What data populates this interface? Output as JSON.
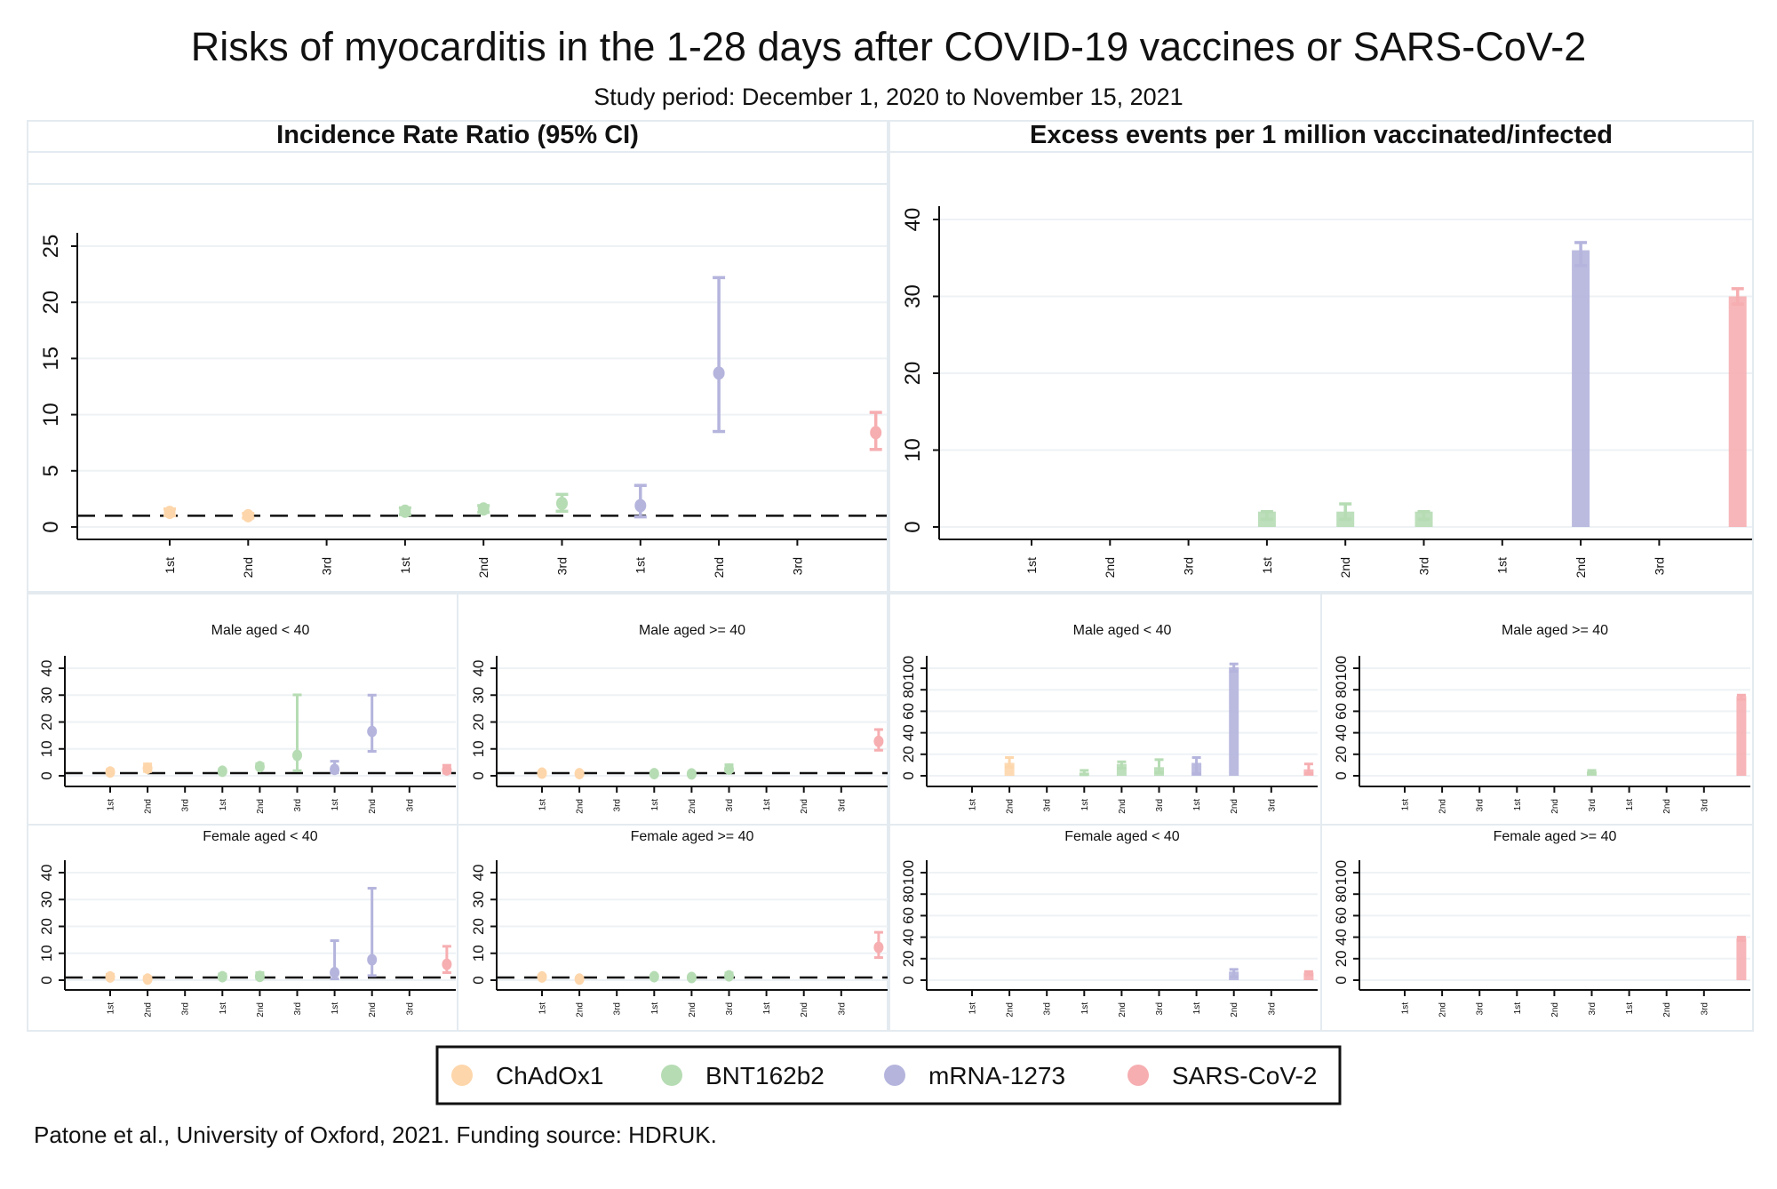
{
  "title": "Risks of myocarditis in the 1-28 days after COVID-19 vaccines or SARS-CoV-2",
  "subtitle": "Study period: December 1, 2020 to November 15, 2021",
  "panels": {
    "irr_header": "Incidence Rate Ratio (95% CI)",
    "excess_header": "Excess events per 1 million vaccinated/infected"
  },
  "legend": [
    {
      "label": "ChAdOx1",
      "color": "#fdd6ab"
    },
    {
      "label": "BNT162b2",
      "color": "#b6dcb4"
    },
    {
      "label": "mRNA-1273",
      "color": "#b4b4dd"
    },
    {
      "label": "SARS-CoV-2",
      "color": "#f6aeb1"
    }
  ],
  "footer": "Patone et al., University of Oxford, 2021. Funding source: HDRUK.",
  "chart_data": [
    {
      "type": "scatter",
      "title": "",
      "measure": "Incidence Rate Ratio (95% CI)",
      "ylim": [
        0,
        26
      ],
      "yticks": [
        0,
        5,
        10,
        15,
        20,
        25
      ],
      "reference_line": 1,
      "grid": true,
      "xticks": [
        "1st",
        "2nd",
        "3rd",
        "1st",
        "2nd",
        "3rd",
        "1st",
        "2nd",
        "3rd"
      ],
      "series": [
        {
          "name": "ChAdOx1",
          "points": [
            {
              "dose": "1st",
              "value": 1.3,
              "ci": [
                1.0,
                1.6
              ]
            },
            {
              "dose": "2nd",
              "value": 1.0,
              "ci": [
                0.8,
                1.2
              ]
            }
          ]
        },
        {
          "name": "BNT162b2",
          "points": [
            {
              "dose": "1st",
              "value": 1.4,
              "ci": [
                1.1,
                1.7
              ]
            },
            {
              "dose": "2nd",
              "value": 1.6,
              "ci": [
                1.3,
                1.9
              ]
            },
            {
              "dose": "3rd",
              "value": 2.1,
              "ci": [
                1.4,
                2.9
              ]
            }
          ]
        },
        {
          "name": "mRNA-1273",
          "points": [
            {
              "dose": "1st",
              "value": 1.9,
              "ci": [
                0.9,
                3.7
              ]
            },
            {
              "dose": "2nd",
              "value": 13.7,
              "ci": [
                8.5,
                22.2
              ]
            }
          ]
        },
        {
          "name": "SARS-CoV-2",
          "points": [
            {
              "dose": "",
              "value": 8.4,
              "ci": [
                6.9,
                10.2
              ]
            }
          ]
        }
      ]
    },
    {
      "type": "bar",
      "title": "",
      "measure": "Excess events per 1 million vaccinated/infected",
      "ylim": [
        0,
        41
      ],
      "yticks": [
        0,
        10,
        20,
        30,
        40
      ],
      "grid": true,
      "xticks": [
        "1st",
        "2nd",
        "3rd",
        "1st",
        "2nd",
        "3rd",
        "1st",
        "2nd",
        "3rd"
      ],
      "series": [
        {
          "name": "ChAdOx1",
          "points": []
        },
        {
          "name": "BNT162b2",
          "points": [
            {
              "dose": "1st",
              "value": 2,
              "ci": [
                1,
                2
              ]
            },
            {
              "dose": "2nd",
              "value": 2,
              "ci": [
                1,
                3
              ]
            },
            {
              "dose": "3rd",
              "value": 2,
              "ci": [
                1,
                2
              ]
            }
          ]
        },
        {
          "name": "mRNA-1273",
          "points": [
            {
              "dose": "2nd",
              "value": 36,
              "ci": [
                34,
                37
              ]
            }
          ]
        },
        {
          "name": "SARS-CoV-2",
          "points": [
            {
              "dose": "",
              "value": 30,
              "ci": [
                29,
                31
              ]
            }
          ]
        }
      ]
    },
    {
      "type": "scatter",
      "title": "Male aged < 40",
      "measure": "Incidence Rate Ratio (95% CI)",
      "ylim": [
        0,
        44
      ],
      "yticks": [
        0,
        10,
        20,
        30,
        40
      ],
      "reference_line": 1,
      "grid": true,
      "xticks": [
        "1st",
        "2nd",
        "3rd",
        "1st",
        "2nd",
        "3rd",
        "1st",
        "2nd",
        "3rd"
      ],
      "series": [
        {
          "name": "ChAdOx1",
          "points": [
            {
              "dose": "1st",
              "value": 1.4,
              "ci": [
                0.8,
                2.3
              ]
            },
            {
              "dose": "2nd",
              "value": 2.8,
              "ci": [
                1.6,
                4.4
              ]
            }
          ]
        },
        {
          "name": "BNT162b2",
          "points": [
            {
              "dose": "1st",
              "value": 1.7,
              "ci": [
                1.2,
                2.3
              ]
            },
            {
              "dose": "2nd",
              "value": 3.4,
              "ci": [
                2.7,
                4.5
              ]
            },
            {
              "dose": "3rd",
              "value": 7.6,
              "ci": [
                1.9,
                30.1
              ]
            }
          ]
        },
        {
          "name": "mRNA-1273",
          "points": [
            {
              "dose": "1st",
              "value": 2.4,
              "ci": [
                1.1,
                5.4
              ]
            },
            {
              "dose": "2nd",
              "value": 16.5,
              "ci": [
                9.1,
                30.0
              ]
            }
          ]
        },
        {
          "name": "SARS-CoV-2",
          "points": [
            {
              "dose": "",
              "value": 2.2,
              "ci": [
                1.0,
                3.9
              ]
            }
          ]
        }
      ]
    },
    {
      "type": "scatter",
      "title": "Male aged >= 40",
      "measure": "Incidence Rate Ratio (95% CI)",
      "ylim": [
        0,
        44
      ],
      "yticks": [
        0,
        10,
        20,
        30,
        40
      ],
      "reference_line": 1,
      "grid": true,
      "xticks": [
        "1st",
        "2nd",
        "3rd",
        "1st",
        "2nd",
        "3rd",
        "1st",
        "2nd",
        "3rd"
      ],
      "series": [
        {
          "name": "ChAdOx1",
          "points": [
            {
              "dose": "1st",
              "value": 1.0,
              "ci": [
                0.7,
                1.6
              ]
            },
            {
              "dose": "2nd",
              "value": 0.8,
              "ci": [
                0.5,
                1.2
              ]
            }
          ]
        },
        {
          "name": "BNT162b2",
          "points": [
            {
              "dose": "1st",
              "value": 0.8,
              "ci": [
                0.5,
                1.3
              ]
            },
            {
              "dose": "2nd",
              "value": 0.7,
              "ci": [
                0.4,
                1.2
              ]
            },
            {
              "dose": "3rd",
              "value": 2.5,
              "ci": [
                1.6,
                4.1
              ]
            }
          ]
        },
        {
          "name": "mRNA-1273",
          "points": []
        },
        {
          "name": "SARS-CoV-2",
          "points": [
            {
              "dose": "",
              "value": 12.8,
              "ci": [
                9.5,
                17.2
              ]
            }
          ]
        }
      ]
    },
    {
      "type": "scatter",
      "title": "Female aged < 40",
      "measure": "Incidence Rate Ratio (95% CI)",
      "ylim": [
        0,
        44
      ],
      "yticks": [
        0,
        10,
        20,
        30,
        40
      ],
      "reference_line": 1,
      "grid": true,
      "xticks": [
        "1st",
        "2nd",
        "3rd",
        "1st",
        "2nd",
        "3rd",
        "1st",
        "2nd",
        "3rd"
      ],
      "series": [
        {
          "name": "ChAdOx1",
          "points": [
            {
              "dose": "1st",
              "value": 1.2,
              "ci": [
                0.6,
                2.2
              ]
            },
            {
              "dose": "2nd",
              "value": 0.4,
              "ci": [
                0.1,
                1.3
              ]
            }
          ]
        },
        {
          "name": "BNT162b2",
          "points": [
            {
              "dose": "1st",
              "value": 1.3,
              "ci": [
                0.7,
                2.3
              ]
            },
            {
              "dose": "2nd",
              "value": 1.4,
              "ci": [
                0.6,
                2.8
              ]
            }
          ]
        },
        {
          "name": "mRNA-1273",
          "points": [
            {
              "dose": "1st",
              "value": 2.8,
              "ci": [
                0.5,
                14.7
              ]
            },
            {
              "dose": "2nd",
              "value": 7.6,
              "ci": [
                1.7,
                34.2
              ]
            }
          ]
        },
        {
          "name": "SARS-CoV-2",
          "points": [
            {
              "dose": "",
              "value": 5.9,
              "ci": [
                2.8,
                12.6
              ]
            }
          ]
        }
      ]
    },
    {
      "type": "scatter",
      "title": "Female aged >= 40",
      "measure": "Incidence Rate Ratio (95% CI)",
      "ylim": [
        0,
        44
      ],
      "yticks": [
        0,
        10,
        20,
        30,
        40
      ],
      "reference_line": 1,
      "grid": true,
      "xticks": [
        "1st",
        "2nd",
        "3rd",
        "1st",
        "2nd",
        "3rd",
        "1st",
        "2nd",
        "3rd"
      ],
      "series": [
        {
          "name": "ChAdOx1",
          "points": [
            {
              "dose": "1st",
              "value": 1.2,
              "ci": [
                0.8,
                1.8
              ]
            },
            {
              "dose": "2nd",
              "value": 0.4,
              "ci": [
                0.2,
                0.9
              ]
            }
          ]
        },
        {
          "name": "BNT162b2",
          "points": [
            {
              "dose": "1st",
              "value": 1.3,
              "ci": [
                0.8,
                1.8
              ]
            },
            {
              "dose": "2nd",
              "value": 1.0,
              "ci": [
                0.6,
                1.5
              ]
            },
            {
              "dose": "3rd",
              "value": 1.6,
              "ci": [
                0.9,
                2.7
              ]
            }
          ]
        },
        {
          "name": "mRNA-1273",
          "points": []
        },
        {
          "name": "SARS-CoV-2",
          "points": [
            {
              "dose": "",
              "value": 12.2,
              "ci": [
                8.4,
                17.8
              ]
            }
          ]
        }
      ]
    },
    {
      "type": "bar",
      "title": "Male aged < 40",
      "measure": "Excess events per 1 million vaccinated/infected",
      "ylim": [
        0,
        108
      ],
      "yticks": [
        0,
        20,
        40,
        60,
        80,
        100
      ],
      "grid": true,
      "xticks": [
        "1st",
        "2nd",
        "3rd",
        "1st",
        "2nd",
        "3rd",
        "1st",
        "2nd",
        "3rd"
      ],
      "series": [
        {
          "name": "ChAdOx1",
          "points": [
            {
              "dose": "2nd",
              "value": 12,
              "ci": [
                8,
                17
              ]
            }
          ]
        },
        {
          "name": "BNT162b2",
          "points": [
            {
              "dose": "1st",
              "value": 3,
              "ci": [
                1,
                5
              ]
            },
            {
              "dose": "2nd",
              "value": 11,
              "ci": [
                7,
                13
              ]
            },
            {
              "dose": "3rd",
              "value": 8,
              "ci": [
                3,
                15
              ]
            }
          ]
        },
        {
          "name": "mRNA-1273",
          "points": [
            {
              "dose": "1st",
              "value": 12,
              "ci": [
                2,
                17
              ]
            },
            {
              "dose": "2nd",
              "value": 101,
              "ci": [
                97,
                104
              ]
            }
          ]
        },
        {
          "name": "SARS-CoV-2",
          "points": [
            {
              "dose": "",
              "value": 6,
              "ci": [
                2,
                11
              ]
            }
          ]
        }
      ]
    },
    {
      "type": "bar",
      "title": "Male aged >= 40",
      "measure": "Excess events per 1 million vaccinated/infected",
      "ylim": [
        0,
        108
      ],
      "yticks": [
        0,
        20,
        40,
        60,
        80,
        100
      ],
      "grid": true,
      "xticks": [
        "1st",
        "2nd",
        "3rd",
        "1st",
        "2nd",
        "3rd",
        "1st",
        "2nd",
        "3rd"
      ],
      "series": [
        {
          "name": "ChAdOx1",
          "points": []
        },
        {
          "name": "BNT162b2",
          "points": [
            {
              "dose": "3rd",
              "value": 4,
              "ci": [
                2,
                5
              ]
            }
          ]
        },
        {
          "name": "mRNA-1273",
          "points": []
        },
        {
          "name": "SARS-CoV-2",
          "points": [
            {
              "dose": "",
              "value": 74,
              "ci": [
                71,
                75
              ]
            }
          ]
        }
      ]
    },
    {
      "type": "bar",
      "title": "Female aged < 40",
      "measure": "Excess events per 1 million vaccinated/infected",
      "ylim": [
        0,
        108
      ],
      "yticks": [
        0,
        20,
        40,
        60,
        80,
        100
      ],
      "grid": true,
      "xticks": [
        "1st",
        "2nd",
        "3rd",
        "1st",
        "2nd",
        "3rd",
        "1st",
        "2nd",
        "3rd"
      ],
      "series": [
        {
          "name": "ChAdOx1",
          "points": []
        },
        {
          "name": "BNT162b2",
          "points": []
        },
        {
          "name": "mRNA-1273",
          "points": [
            {
              "dose": "2nd",
              "value": 8,
              "ci": [
                3,
                10
              ]
            }
          ]
        },
        {
          "name": "SARS-CoV-2",
          "points": [
            {
              "dose": "",
              "value": 7,
              "ci": [
                5,
                8
              ]
            }
          ]
        }
      ]
    },
    {
      "type": "bar",
      "title": "Female aged >= 40",
      "measure": "Excess events per 1 million vaccinated/infected",
      "ylim": [
        0,
        108
      ],
      "yticks": [
        0,
        20,
        40,
        60,
        80,
        100
      ],
      "grid": true,
      "xticks": [
        "1st",
        "2nd",
        "3rd",
        "1st",
        "2nd",
        "3rd",
        "1st",
        "2nd",
        "3rd"
      ],
      "series": [
        {
          "name": "ChAdOx1",
          "points": []
        },
        {
          "name": "BNT162b2",
          "points": []
        },
        {
          "name": "mRNA-1273",
          "points": []
        },
        {
          "name": "SARS-CoV-2",
          "points": [
            {
              "dose": "",
              "value": 39,
              "ci": [
                37,
                40
              ]
            }
          ]
        }
      ]
    }
  ]
}
